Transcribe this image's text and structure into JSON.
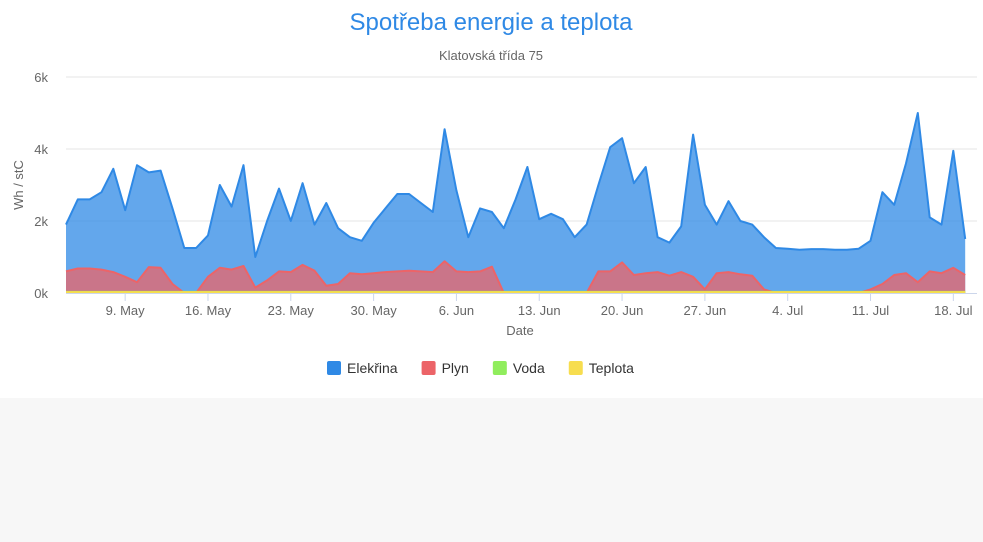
{
  "chart_data": {
    "type": "area",
    "title": "Spotřeba energie a teplota",
    "subtitle": "Klatovská třída 75",
    "xlabel": "Date",
    "ylabel": "Wh / stC",
    "ylim": [
      0,
      6000
    ],
    "yticks": [
      {
        "value": 0,
        "label": "0k"
      },
      {
        "value": 2000,
        "label": "2k"
      },
      {
        "value": 4000,
        "label": "4k"
      },
      {
        "value": 6000,
        "label": "6k"
      }
    ],
    "xrange": [
      "2020-05-04",
      "2020-07-20"
    ],
    "xticks": [
      {
        "date": "2020-05-09",
        "label": "9. May"
      },
      {
        "date": "2020-05-16",
        "label": "16. May"
      },
      {
        "date": "2020-05-23",
        "label": "23. May"
      },
      {
        "date": "2020-05-30",
        "label": "30. May"
      },
      {
        "date": "2020-06-06",
        "label": "6. Jun"
      },
      {
        "date": "2020-06-13",
        "label": "13. Jun"
      },
      {
        "date": "2020-06-20",
        "label": "20. Jun"
      },
      {
        "date": "2020-06-27",
        "label": "27. Jun"
      },
      {
        "date": "2020-07-04",
        "label": "4. Jul"
      },
      {
        "date": "2020-07-11",
        "label": "11. Jul"
      },
      {
        "date": "2020-07-18",
        "label": "18. Jul"
      }
    ],
    "grid": true,
    "legend": "bottom-center",
    "x": [
      "2020-05-04",
      "2020-05-05",
      "2020-05-06",
      "2020-05-07",
      "2020-05-08",
      "2020-05-09",
      "2020-05-10",
      "2020-05-11",
      "2020-05-12",
      "2020-05-13",
      "2020-05-14",
      "2020-05-15",
      "2020-05-16",
      "2020-05-17",
      "2020-05-18",
      "2020-05-19",
      "2020-05-20",
      "2020-05-21",
      "2020-05-22",
      "2020-05-23",
      "2020-05-24",
      "2020-05-25",
      "2020-05-26",
      "2020-05-27",
      "2020-05-28",
      "2020-05-29",
      "2020-05-30",
      "2020-05-31",
      "2020-06-01",
      "2020-06-02",
      "2020-06-03",
      "2020-06-04",
      "2020-06-05",
      "2020-06-06",
      "2020-06-07",
      "2020-06-08",
      "2020-06-09",
      "2020-06-10",
      "2020-06-11",
      "2020-06-12",
      "2020-06-13",
      "2020-06-14",
      "2020-06-15",
      "2020-06-16",
      "2020-06-17",
      "2020-06-18",
      "2020-06-19",
      "2020-06-20",
      "2020-06-21",
      "2020-06-22",
      "2020-06-23",
      "2020-06-24",
      "2020-06-25",
      "2020-06-26",
      "2020-06-27",
      "2020-06-28",
      "2020-06-29",
      "2020-06-30",
      "2020-07-01",
      "2020-07-02",
      "2020-07-03",
      "2020-07-04",
      "2020-07-05",
      "2020-07-06",
      "2020-07-07",
      "2020-07-08",
      "2020-07-09",
      "2020-07-10",
      "2020-07-11",
      "2020-07-12",
      "2020-07-13",
      "2020-07-14",
      "2020-07-15",
      "2020-07-16",
      "2020-07-17",
      "2020-07-18",
      "2020-07-19"
    ],
    "series": [
      {
        "name": "Elekřina",
        "color": "#2f89e5",
        "values": [
          1900,
          2600,
          2600,
          2800,
          3450,
          2300,
          3550,
          3350,
          3400,
          2350,
          1250,
          1250,
          1600,
          3000,
          2400,
          3550,
          1000,
          2000,
          2900,
          2000,
          3050,
          1900,
          2500,
          1800,
          1550,
          1450,
          1950,
          2350,
          2750,
          2750,
          2500,
          2250,
          4550,
          2850,
          1550,
          2350,
          2250,
          1800,
          2600,
          3500,
          2050,
          2200,
          2050,
          1550,
          1900,
          3000,
          4050,
          4300,
          3050,
          3500,
          1550,
          1400,
          1850,
          4400,
          2450,
          1900,
          2550,
          2000,
          1900,
          1550,
          1250,
          1230,
          1200,
          1220,
          1220,
          1200,
          1200,
          1230,
          1450,
          2800,
          2450,
          3600,
          5000,
          2100,
          1900,
          3950,
          1500
        ]
      },
      {
        "name": "Plyn",
        "color": "#ec6468",
        "values": [
          600,
          680,
          680,
          650,
          580,
          450,
          300,
          720,
          700,
          250,
          0,
          0,
          450,
          700,
          650,
          750,
          150,
          350,
          600,
          580,
          780,
          620,
          200,
          250,
          550,
          520,
          550,
          580,
          600,
          620,
          600,
          580,
          880,
          600,
          580,
          600,
          730,
          0,
          0,
          0,
          0,
          0,
          0,
          0,
          0,
          600,
          600,
          850,
          500,
          550,
          580,
          480,
          580,
          450,
          100,
          550,
          580,
          520,
          480,
          100,
          0,
          0,
          0,
          0,
          0,
          0,
          0,
          0,
          100,
          250,
          500,
          550,
          300,
          600,
          550,
          700,
          500
        ]
      },
      {
        "name": "Voda",
        "color": "#90ed5d",
        "values": [
          30,
          30,
          30,
          30,
          30,
          30,
          30,
          30,
          30,
          30,
          30,
          30,
          30,
          30,
          30,
          30,
          30,
          30,
          30,
          30,
          30,
          30,
          30,
          30,
          30,
          30,
          30,
          30,
          30,
          30,
          30,
          30,
          30,
          30,
          30,
          30,
          30,
          30,
          30,
          30,
          30,
          30,
          30,
          30,
          30,
          30,
          30,
          30,
          30,
          30,
          30,
          30,
          30,
          30,
          30,
          30,
          30,
          30,
          30,
          30,
          30,
          30,
          30,
          30,
          30,
          30,
          30,
          30,
          30,
          30,
          30,
          30,
          30,
          30,
          30,
          30,
          30
        ]
      },
      {
        "name": "Teplota",
        "color": "#f7dd4f",
        "values": [
          25,
          25,
          25,
          25,
          25,
          25,
          25,
          25,
          25,
          25,
          25,
          25,
          25,
          25,
          25,
          25,
          25,
          25,
          25,
          25,
          25,
          25,
          25,
          25,
          25,
          25,
          25,
          25,
          25,
          25,
          25,
          25,
          25,
          25,
          25,
          25,
          25,
          25,
          25,
          25,
          25,
          25,
          25,
          25,
          25,
          25,
          25,
          25,
          25,
          25,
          25,
          25,
          25,
          25,
          25,
          25,
          25,
          25,
          25,
          25,
          25,
          25,
          25,
          25,
          25,
          25,
          25,
          25,
          25,
          25,
          25,
          25,
          25,
          25,
          25,
          25,
          25
        ]
      }
    ]
  },
  "colors": {
    "title": "#2f89e5",
    "grid": "#e6e6e6",
    "axis": "#ccd6eb"
  }
}
